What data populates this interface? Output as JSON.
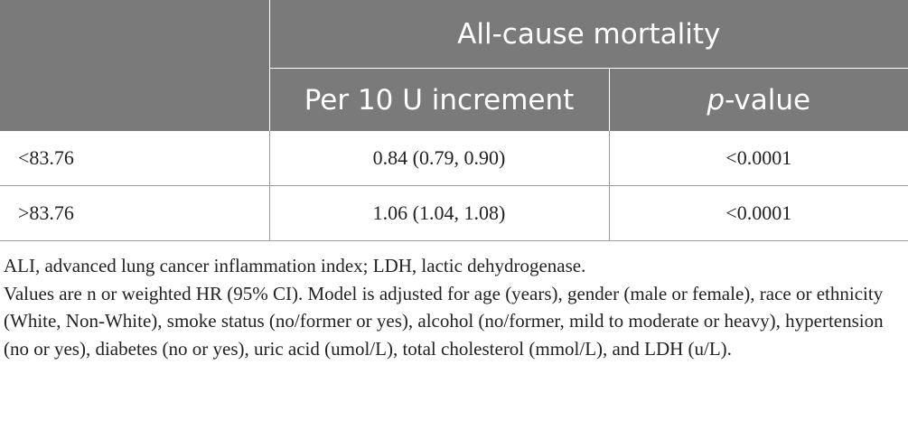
{
  "table": {
    "header": {
      "stub": "",
      "group": "All-cause mortality",
      "col1": "Per 10 U increment",
      "col2_italic": "p",
      "col2_rest": "-value"
    },
    "rows": [
      {
        "stub": "<83.76",
        "estimate": "0.84 (0.79, 0.90)",
        "p": "<0.0001"
      },
      {
        "stub": ">83.76",
        "estimate": "1.06 (1.04, 1.08)",
        "p": "<0.0001"
      }
    ]
  },
  "footnotes": [
    "ALI, advanced lung cancer inflammation index; LDH, lactic dehydrogenase.",
    "Values are n or weighted HR (95% CI). Model is adjusted for age (years), gender (male or female), race or ethnicity (White, Non-White), smoke status (no/former or yes), alcohol (no/former, mild to moderate or heavy), hypertension (no or yes), diabetes (no or yes), uric acid (umol/L), total cholesterol (mmol/L), and LDH (u/L)."
  ],
  "colors": {
    "header_bg": "#7a7a7a",
    "header_text": "#ffffff",
    "rule": "#9a9a9a",
    "text": "#222222"
  }
}
